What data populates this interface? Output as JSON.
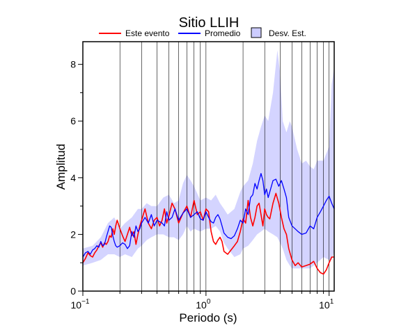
{
  "chart_data": {
    "type": "line",
    "title": "Sitio LLIH",
    "xlabel": "Periodo (s)",
    "ylabel": "Amplitud",
    "x_scale": "log",
    "xlim": [
      0.1,
      11
    ],
    "ylim": [
      0,
      8.8
    ],
    "grid": true,
    "legend_position": "top",
    "x_ticks": [
      {
        "value": 0.1,
        "base": "10",
        "exp": "−1"
      },
      {
        "value": 1,
        "base": "10",
        "exp": "0"
      },
      {
        "value": 10,
        "base": "10",
        "exp": "1"
      }
    ],
    "y_ticks": [
      {
        "value": 0,
        "label": "0"
      },
      {
        "value": 2,
        "label": "2"
      },
      {
        "value": 4,
        "label": "4"
      },
      {
        "value": 6,
        "label": "6"
      },
      {
        "value": 8,
        "label": "8"
      }
    ],
    "series": [
      {
        "name": "Este evento",
        "color": "#ff0000",
        "x": [
          0.1,
          0.105,
          0.11,
          0.115,
          0.12,
          0.125,
          0.13,
          0.135,
          0.14,
          0.145,
          0.15,
          0.155,
          0.16,
          0.165,
          0.17,
          0.175,
          0.18,
          0.185,
          0.19,
          0.2,
          0.21,
          0.22,
          0.23,
          0.24,
          0.25,
          0.26,
          0.27,
          0.28,
          0.29,
          0.3,
          0.32,
          0.34,
          0.36,
          0.38,
          0.4,
          0.42,
          0.44,
          0.46,
          0.48,
          0.5,
          0.53,
          0.56,
          0.6,
          0.65,
          0.7,
          0.75,
          0.8,
          0.85,
          0.9,
          0.95,
          1.0,
          1.05,
          1.1,
          1.15,
          1.2,
          1.25,
          1.3,
          1.35,
          1.4,
          1.5,
          1.6,
          1.7,
          1.8,
          1.9,
          2.0,
          2.1,
          2.2,
          2.3,
          2.4,
          2.5,
          2.6,
          2.7,
          2.8,
          2.9,
          3.0,
          3.1,
          3.2,
          3.3,
          3.5,
          3.7,
          3.9,
          4.1,
          4.3,
          4.5,
          4.7,
          5.0,
          5.3,
          5.6,
          6.0,
          6.5,
          7.0,
          7.5,
          8.0,
          8.5,
          9.0,
          9.5,
          10.0,
          10.5,
          11.0
        ],
        "y": [
          1.0,
          1.15,
          1.35,
          1.25,
          1.2,
          1.35,
          1.45,
          1.6,
          1.7,
          1.55,
          1.7,
          1.65,
          1.75,
          1.95,
          1.9,
          2.2,
          2.0,
          2.3,
          2.5,
          2.2,
          1.95,
          1.75,
          2.0,
          2.25,
          1.95,
          2.1,
          1.65,
          2.0,
          2.3,
          2.5,
          2.9,
          2.4,
          2.2,
          2.5,
          2.6,
          2.3,
          2.5,
          2.9,
          2.4,
          2.65,
          3.1,
          2.9,
          2.4,
          2.75,
          3.0,
          2.6,
          3.2,
          2.7,
          2.8,
          2.5,
          2.9,
          2.8,
          2.1,
          1.75,
          1.65,
          1.8,
          1.9,
          1.75,
          1.4,
          1.3,
          1.45,
          1.6,
          1.75,
          2.1,
          2.55,
          2.4,
          3.2,
          2.6,
          2.3,
          2.6,
          3.0,
          3.1,
          2.7,
          2.3,
          2.9,
          2.7,
          2.6,
          2.55,
          3.1,
          3.45,
          3.1,
          2.6,
          2.2,
          2.0,
          1.5,
          1.1,
          0.9,
          1.0,
          0.85,
          0.9,
          0.95,
          1.05,
          0.8,
          0.65,
          0.6,
          0.75,
          1.0,
          1.2,
          1.2
        ]
      },
      {
        "name": "Promedio",
        "color": "#0000ff",
        "x": [
          0.1,
          0.105,
          0.11,
          0.115,
          0.12,
          0.125,
          0.13,
          0.135,
          0.14,
          0.145,
          0.15,
          0.155,
          0.16,
          0.165,
          0.17,
          0.175,
          0.18,
          0.185,
          0.19,
          0.2,
          0.21,
          0.22,
          0.23,
          0.24,
          0.25,
          0.26,
          0.27,
          0.28,
          0.29,
          0.3,
          0.32,
          0.34,
          0.36,
          0.38,
          0.4,
          0.42,
          0.44,
          0.46,
          0.48,
          0.5,
          0.53,
          0.56,
          0.6,
          0.65,
          0.7,
          0.75,
          0.8,
          0.85,
          0.9,
          0.95,
          1.0,
          1.05,
          1.1,
          1.15,
          1.2,
          1.25,
          1.3,
          1.35,
          1.4,
          1.5,
          1.6,
          1.7,
          1.8,
          1.9,
          2.0,
          2.1,
          2.2,
          2.3,
          2.4,
          2.5,
          2.6,
          2.7,
          2.8,
          2.9,
          3.0,
          3.1,
          3.2,
          3.3,
          3.5,
          3.7,
          3.9,
          4.1,
          4.3,
          4.5,
          4.7,
          5.0,
          5.3,
          5.6,
          6.0,
          6.5,
          7.0,
          7.5,
          8.0,
          8.5,
          9.0,
          9.5,
          10.0,
          10.5,
          11.0
        ],
        "y": [
          1.2,
          1.35,
          1.4,
          1.3,
          1.45,
          1.5,
          1.6,
          1.55,
          1.75,
          1.6,
          1.65,
          1.9,
          2.1,
          2.3,
          2.25,
          1.95,
          1.75,
          1.6,
          1.55,
          1.6,
          1.7,
          1.65,
          1.5,
          1.6,
          2.1,
          1.9,
          2.3,
          2.1,
          2.2,
          2.4,
          2.6,
          2.4,
          2.7,
          2.3,
          2.5,
          2.45,
          2.4,
          2.3,
          2.8,
          2.5,
          2.6,
          2.9,
          2.5,
          2.75,
          2.9,
          2.6,
          2.7,
          2.8,
          2.55,
          2.5,
          2.8,
          2.6,
          2.45,
          2.4,
          2.6,
          2.7,
          2.55,
          2.3,
          2.05,
          1.9,
          1.85,
          1.95,
          2.2,
          2.5,
          2.4,
          2.9,
          2.7,
          3.3,
          3.4,
          3.8,
          3.6,
          3.9,
          4.15,
          3.9,
          3.4,
          3.6,
          3.3,
          3.5,
          3.9,
          3.95,
          3.7,
          3.9,
          3.6,
          3.3,
          2.6,
          2.3,
          2.2,
          2.1,
          2.0,
          2.05,
          2.3,
          2.2,
          2.6,
          2.8,
          3.0,
          3.2,
          3.35,
          3.1,
          2.9
        ]
      }
    ],
    "band": {
      "name": "Desv. Est.",
      "color": "#ccccff",
      "x": [
        0.1,
        0.12,
        0.14,
        0.16,
        0.18,
        0.2,
        0.22,
        0.25,
        0.28,
        0.3,
        0.33,
        0.36,
        0.4,
        0.45,
        0.5,
        0.55,
        0.6,
        0.65,
        0.7,
        0.75,
        0.8,
        0.9,
        1.0,
        1.1,
        1.2,
        1.3,
        1.4,
        1.5,
        1.7,
        1.9,
        2.0,
        2.2,
        2.4,
        2.6,
        2.8,
        3.0,
        3.2,
        3.5,
        3.8,
        4.0,
        4.2,
        4.5,
        4.8,
        5.0,
        5.5,
        6.0,
        6.5,
        7.0,
        7.5,
        8.0,
        9.0,
        10.0,
        10.5,
        11.0
      ],
      "upper": [
        1.5,
        1.6,
        1.9,
        2.4,
        2.6,
        2.2,
        2.4,
        2.6,
        2.9,
        2.9,
        3.1,
        3.0,
        3.0,
        3.3,
        3.4,
        3.1,
        3.2,
        3.8,
        4.1,
        3.9,
        3.7,
        3.2,
        3.3,
        3.2,
        3.4,
        3.1,
        2.9,
        2.7,
        2.9,
        3.5,
        3.7,
        3.9,
        4.5,
        5.3,
        5.8,
        6.2,
        6.0,
        7.0,
        8.5,
        7.7,
        6.0,
        5.6,
        6.0,
        5.8,
        5.0,
        4.5,
        4.6,
        4.4,
        4.3,
        4.6,
        4.6,
        5.1,
        7.3,
        7.9
      ],
      "lower": [
        0.9,
        1.0,
        1.1,
        1.3,
        1.3,
        1.2,
        1.3,
        1.2,
        1.5,
        1.6,
        1.8,
        1.9,
        2.0,
        2.0,
        1.9,
        1.9,
        1.8,
        2.0,
        2.3,
        2.1,
        2.2,
        2.1,
        2.2,
        2.2,
        2.3,
        2.1,
        1.7,
        1.5,
        1.2,
        1.3,
        1.5,
        1.6,
        1.8,
        2.0,
        2.1,
        2.2,
        2.1,
        2.0,
        1.9,
        1.7,
        1.5,
        1.1,
        0.9,
        0.8,
        0.8,
        0.8,
        0.8,
        0.8,
        0.9,
        1.0,
        1.2,
        1.1,
        1.1,
        1.4
      ]
    }
  }
}
